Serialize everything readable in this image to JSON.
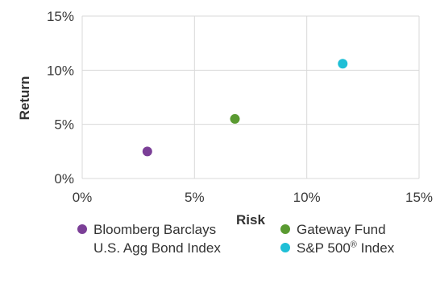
{
  "chart_data": {
    "type": "scatter",
    "xlabel": "Risk",
    "ylabel": "Return",
    "xlim": [
      0,
      15
    ],
    "ylim": [
      0,
      15
    ],
    "x_ticks": [
      "0%",
      "5%",
      "10%",
      "15%"
    ],
    "y_ticks": [
      "0%",
      "5%",
      "10%",
      "15%"
    ],
    "grid": true,
    "legend_position": "bottom",
    "series": [
      {
        "name": "Bloomberg Barclays U.S. Agg Bond Index",
        "name_lines": [
          "Bloomberg Barclays",
          "U.S. Agg Bond Index"
        ],
        "x": 2.9,
        "y": 2.5,
        "color": "#7b3f97"
      },
      {
        "name": "Gateway Fund",
        "name_lines": [
          "Gateway Fund"
        ],
        "x": 6.8,
        "y": 5.5,
        "color": "#5a9a31"
      },
      {
        "name": "S&P 500® Index",
        "name_lines": [
          "S&P 500",
          "® Index"
        ],
        "x": 11.6,
        "y": 10.6,
        "color": "#1fbfd6"
      }
    ]
  }
}
